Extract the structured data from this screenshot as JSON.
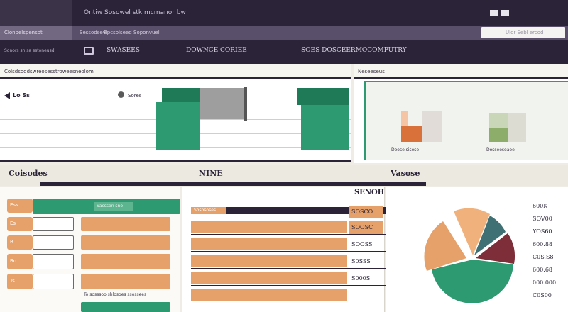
{
  "colors": {
    "navy": "#2b2438",
    "purple_mid": "#5a4f6b",
    "purple_light": "#726881",
    "green": "#2e9a72",
    "orange": "#e6a06a",
    "dark_orange": "#d9713b",
    "light_bg": "#f6f5f1",
    "pale_green": "#f1f4ee",
    "pie_teal": "#3f7074",
    "pie_maroon": "#7d2e38"
  },
  "header": {
    "title_left": "",
    "title_center": "Ontiw Sosowel stk mcmanor bw",
    "logo_right": "",
    "search_placeholder": "Ulor Sebl ercod"
  },
  "nav": {
    "tabs": [
      "Clonbelspensot",
      "Sessodsey",
      "Bpcsolseed",
      "Soponvuel"
    ],
    "left_label": "Sonors sn sa sstoneusd",
    "active_icon": "monitor-icon"
  },
  "subheader": {
    "items": [
      "SWASEES",
      "DOWNCE CORIEE",
      "SOES DOSCEERMOCOMPUTRY"
    ]
  },
  "top_panel_left": {
    "heading": "Colsdsoddswreosesstroweesneolom",
    "row1_label": "Lo Ss",
    "row2_label": "Sores"
  },
  "top_panel_right": {
    "heading": "Neseeseus",
    "chart1_label": "Doose sisese",
    "chart2_label": "Dosseeseaoe"
  },
  "section_titles": {
    "left": "Coisodes",
    "center": "NINE",
    "right": "Vasose"
  },
  "bottom_left": {
    "header_label": "Sacsson sno",
    "footer_label": "To sosssoo shlosoes ssossees",
    "bar_tabs": [
      "Ess",
      "Es",
      "B",
      "Bo",
      "Ts"
    ]
  },
  "bottom_center": {
    "corner_label": "SENOH",
    "header_label": "Sosososes",
    "values": [
      "SOSCO",
      "SOOSC",
      "SOOSS",
      "S0SSS",
      "S000S"
    ]
  },
  "pie_legend": {
    "values": [
      "600K",
      "SOV00",
      "YOS60",
      "600.88",
      "C0S.S8",
      "600.68",
      "000.000",
      "C0S00"
    ]
  }
}
